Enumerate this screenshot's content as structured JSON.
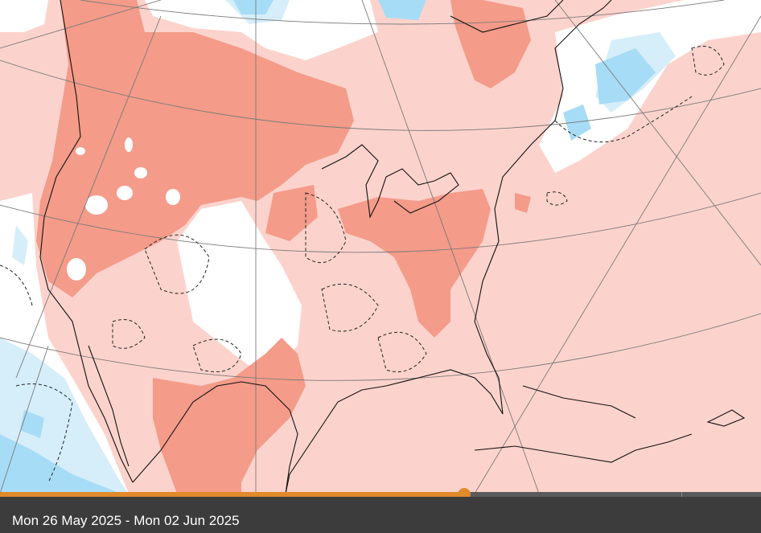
{
  "map": {
    "title": "",
    "colors": {
      "light_warm": "#fcd3cc",
      "warm": "#f49b8a",
      "neutral": "#ffffff",
      "light_cool": "#d6eefa",
      "cool": "#a7dcf7",
      "coastline": "#111111",
      "graticule": "#7a7a7a"
    }
  },
  "timeline": {
    "progress_fraction": 0.61,
    "date_range": "Mon 26 May 2025 - Mon 02 Jun 2025"
  }
}
